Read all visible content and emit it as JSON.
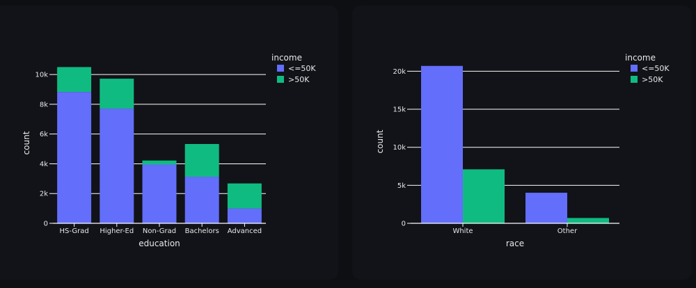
{
  "chart_data": [
    {
      "type": "bar",
      "barmode": "stack",
      "xlabel": "education",
      "ylabel": "count",
      "categories": [
        "HS-Grad",
        "Higher-Ed",
        "Non-Grad",
        "Bachelors",
        "Advanced"
      ],
      "series": [
        {
          "name": "<=50K",
          "values": [
            8830,
            7710,
            3950,
            3130,
            1000
          ]
        },
        {
          "name": ">50K",
          "values": [
            1670,
            2010,
            270,
            2200,
            1680
          ]
        }
      ],
      "ylim": [
        0,
        10800
      ],
      "yticks": [
        0,
        2000,
        4000,
        6000,
        8000,
        10000
      ],
      "ytick_labels": [
        "0",
        "2k",
        "4k",
        "6k",
        "8k",
        "10k"
      ],
      "legend": {
        "title": "income",
        "position": "top-right"
      },
      "grid": true,
      "colors": [
        "#636efa",
        "#10bb82"
      ]
    },
    {
      "type": "bar",
      "barmode": "group",
      "xlabel": "race",
      "ylabel": "count",
      "categories": [
        "White",
        "Other"
      ],
      "series": [
        {
          "name": "<=50K",
          "values": [
            20700,
            4020
          ]
        },
        {
          "name": ">50K",
          "values": [
            7100,
            700
          ]
        }
      ],
      "ylim": [
        0,
        21500
      ],
      "yticks": [
        0,
        5000,
        10000,
        15000,
        20000
      ],
      "ytick_labels": [
        "0",
        "5k",
        "10k",
        "15k",
        "20k"
      ],
      "legend": {
        "title": "income",
        "position": "top-right"
      },
      "grid": true,
      "colors": [
        "#636efa",
        "#10bb82"
      ]
    }
  ]
}
